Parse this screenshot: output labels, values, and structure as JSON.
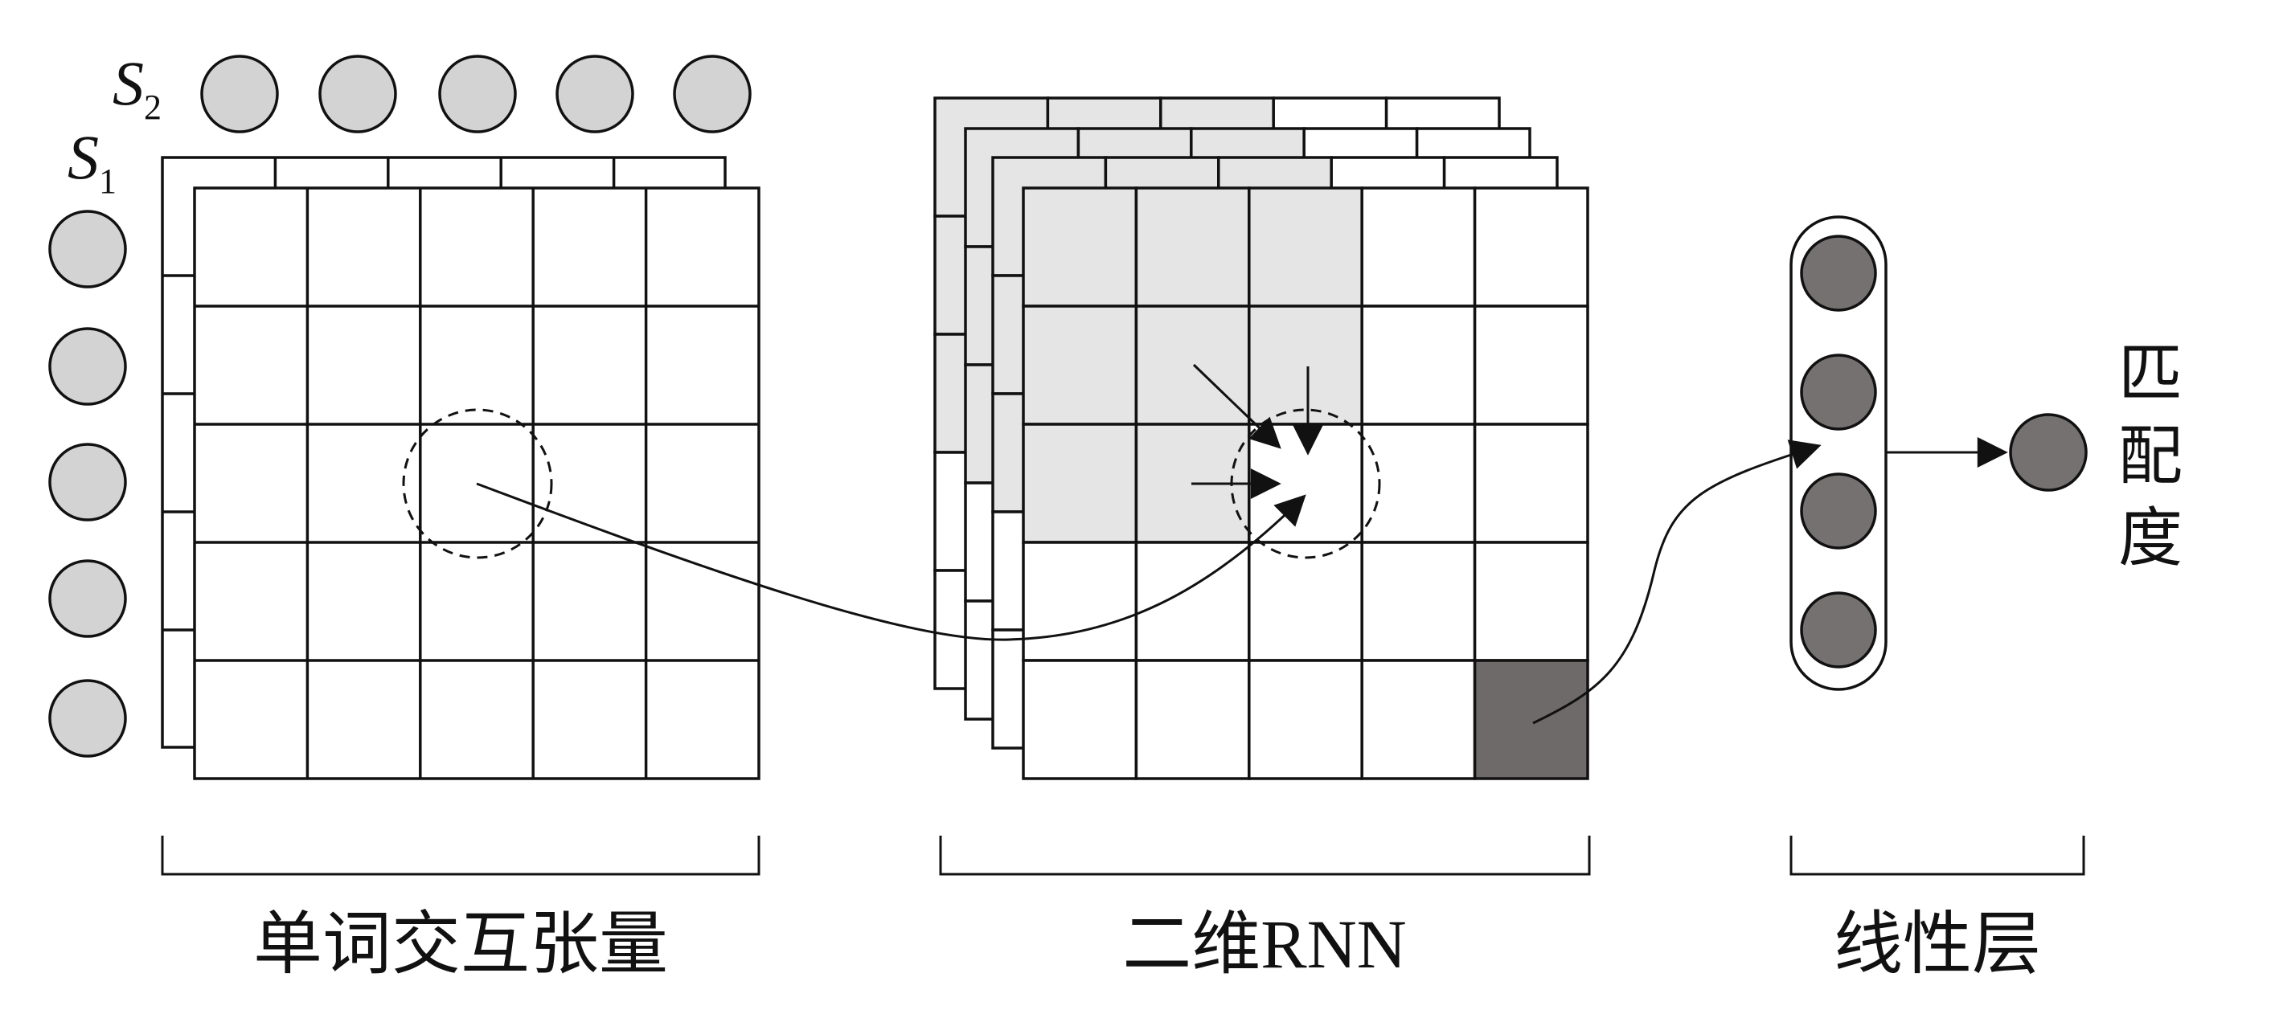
{
  "labels": {
    "s2": {
      "base": "S",
      "sub": "2"
    },
    "s1": {
      "base": "S",
      "sub": "1"
    },
    "section1": "单词交互张量",
    "section2": "二维RNN",
    "section3": "线性层",
    "output": [
      "匹",
      "配",
      "度"
    ]
  },
  "colors": {
    "neuron_light": "#d3d3d3",
    "neuron_dark": "#747170",
    "cell_shaded": "#e6e5e6",
    "cell_dark": "#6d6a69",
    "stroke": "#111111"
  }
}
